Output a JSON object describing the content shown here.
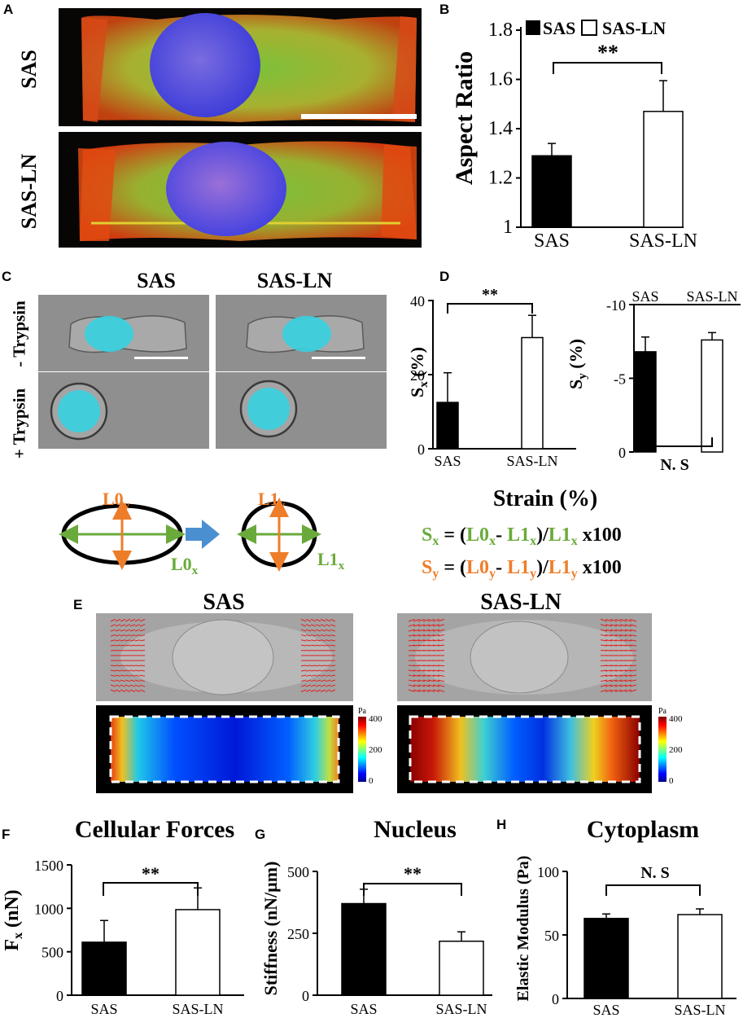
{
  "panels": {
    "A": "A",
    "B": "B",
    "C": "C",
    "D": "D",
    "E": "E",
    "F": "F",
    "G": "G",
    "H": "H"
  },
  "panelA": {
    "row1": "SAS",
    "row2": "SAS-LN"
  },
  "panelC": {
    "col1": "SAS",
    "col2": "SAS-LN",
    "row_top": "- Trypsin",
    "row_bottom": "+ Trypsin"
  },
  "panelE": {
    "left": "SAS",
    "right": "SAS-LN",
    "cbar_unit": "Pa",
    "cbar_ticks": [
      "400",
      "200",
      "0"
    ]
  },
  "diagram": {
    "L0": "L0",
    "L1": "L1",
    "sub_x": "x",
    "sub_y": "y",
    "strain_title": "Strain (%)",
    "S": "S",
    "eq": "=",
    "open": "(",
    "dash": "- ",
    "close": ")",
    "slash": "/",
    "x100": " x100"
  },
  "titles": {
    "F": "Cellular Forces",
    "G": "Nucleus",
    "H": "Cytoplasm"
  },
  "colors": {
    "black_bar": "#000000",
    "white_bar": "#ffffff",
    "green": "#6aaa3a",
    "orange": "#ee7d2a",
    "arrow_blue": "#4a8fd0",
    "vector_red": "#e02020"
  },
  "chart_data": [
    {
      "id": "B",
      "type": "bar",
      "categories": [
        "SAS",
        "SAS-LN"
      ],
      "values": [
        1.29,
        1.47
      ],
      "errors": [
        0.05,
        0.125
      ],
      "ylabel": "Aspect Ratio",
      "ylim": [
        1,
        1.8
      ],
      "yticks": [
        "1",
        "1.2",
        "1.4",
        "1.6",
        "1.8"
      ],
      "legend": [
        "SAS",
        "SAS-LN"
      ],
      "legend_placement": "top",
      "significance": "**"
    },
    {
      "id": "D1",
      "type": "bar",
      "categories": [
        "SAS",
        "SAS-LN"
      ],
      "values": [
        12.5,
        30
      ],
      "errors": [
        8,
        6
      ],
      "ylabel": "S",
      "ylabel_sub": "x",
      "ylabel_unit": "(%)",
      "ylim": [
        0,
        40
      ],
      "yticks": [
        "0",
        "20",
        "40"
      ],
      "significance": "**"
    },
    {
      "id": "D2",
      "type": "bar",
      "categories": [
        "SAS",
        "SAS-LN"
      ],
      "values": [
        -6.8,
        -7.6
      ],
      "errors": [
        1.0,
        0.5
      ],
      "ylabel": "S",
      "ylabel_sub": "y",
      "ylabel_unit": "(%)",
      "ylim": [
        -10,
        0
      ],
      "yticks": [
        "0",
        "-5",
        "-10"
      ],
      "significance": "N. S"
    },
    {
      "id": "F",
      "type": "bar",
      "categories": [
        "SAS",
        "SAS-LN"
      ],
      "values": [
        610,
        985
      ],
      "errors": [
        250,
        250
      ],
      "ylabel": "F",
      "ylabel_sub": "x",
      "ylabel_unit": "(nN)",
      "ylim": [
        0,
        1500
      ],
      "yticks": [
        "0",
        "500",
        "1000",
        "1500"
      ],
      "significance": "**"
    },
    {
      "id": "G",
      "type": "bar",
      "categories": [
        "SAS",
        "SAS-LN"
      ],
      "values": [
        370,
        218
      ],
      "errors": [
        58,
        38
      ],
      "ylabel": "Stiffness (nN/µm)",
      "ylim": [
        0,
        500
      ],
      "yticks": [
        "0",
        "250",
        "500"
      ],
      "significance": "**"
    },
    {
      "id": "H",
      "type": "bar",
      "categories": [
        "SAS",
        "SAS-LN"
      ],
      "values": [
        63,
        66
      ],
      "errors": [
        3.5,
        4.5
      ],
      "ylabel": "Elastic Modulus (Pa)",
      "ylim": [
        0,
        100
      ],
      "yticks": [
        "0",
        "50",
        "100"
      ],
      "significance": "N. S"
    }
  ]
}
